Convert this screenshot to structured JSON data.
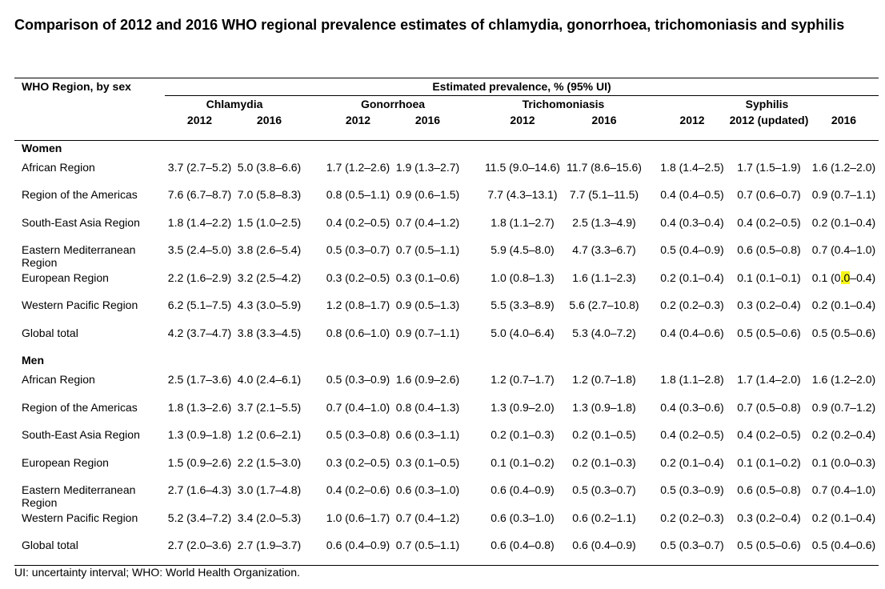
{
  "title": "Comparison of 2012 and 2016 WHO regional prevalence estimates of chlamydia, gonorrhoea, trichomoniasis and syphilis",
  "table": {
    "region_header": "WHO Region, by sex",
    "estimate_header": "Estimated prevalence, % (95% UI)",
    "diseases": [
      "Chlamydia",
      "Gonorrhoea",
      "Trichomoniasis",
      "Syphilis"
    ],
    "years": [
      "2012",
      "2016",
      "2012",
      "2016",
      "2012",
      "2016",
      "2012",
      "2012 (updated)",
      "2016"
    ],
    "groups": [
      {
        "label": "Women",
        "rows": [
          {
            "region": "African Region",
            "values": [
              "3.7 (2.7–5.2)",
              "5.0 (3.8–6.6)",
              "1.7 (1.2–2.6)",
              "1.9 (1.3–2.7)",
              "11.5 (9.0–14.6)",
              "11.7 (8.6–15.6)",
              "1.8 (1.4–2.5)",
              "1.7 (1.5–1.9)",
              "1.6 (1.2–2.0)"
            ]
          },
          {
            "region": "Region of the Americas",
            "values": [
              "7.6 (6.7–8.7)",
              "7.0 (5.8–8.3)",
              "0.8 (0.5–1.1)",
              "0.9 (0.6–1.5)",
              "7.7 (4.3–13.1)",
              "7.7 (5.1–11.5)",
              "0.4 (0.4–0.5)",
              "0.7 (0.6–0.7)",
              "0.9 (0.7–1.1)"
            ]
          },
          {
            "region": "South-East Asia Region",
            "values": [
              "1.8 (1.4–2.2)",
              "1.5 (1.0–2.5)",
              "0.4 (0.2–0.5)",
              "0.7 (0.4–1.2)",
              "1.8 (1.1–2.7)",
              "2.5 (1.3–4.9)",
              "0.4 (0.3–0.4)",
              "0.4 (0.2–0.5)",
              "0.2 (0.1–0.4)"
            ]
          },
          {
            "region": "Eastern Mediterranean Region",
            "values": [
              "3.5 (2.4–5.0)",
              "3.8 (2.6–5.4)",
              "0.5 (0.3–0.7)",
              "0.7 (0.5–1.1)",
              "5.9 (4.5–8.0)",
              "4.7 (3.3–6.7)",
              "0.5 (0.4–0.9)",
              "0.6 (0.5–0.8)",
              "0.7 (0.4–1.0)"
            ]
          },
          {
            "region": "European Region",
            "values": [
              "2.2 (1.6–2.9)",
              "3.2 (2.5–4.2)",
              "0.3 (0.2–0.5)",
              "0.3 (0.1–0.6)",
              "1.0 (0.8–1.3)",
              "1.6 (1.1–2.3)",
              "0.2 (0.1–0.4)",
              "0.1 (0.1–0.1)",
              "0.1 (0.0–0.4)"
            ]
          },
          {
            "region": "Western Pacific Region",
            "values": [
              "6.2 (5.1–7.5)",
              "4.3 (3.0–5.9)",
              "1.2 (0.8–1.7)",
              "0.9 (0.5–1.3)",
              "5.5 (3.3–8.9)",
              "5.6 (2.7–10.8)",
              "0.2 (0.2–0.3)",
              "0.3 (0.2–0.4)",
              "0.2 (0.1–0.4)"
            ]
          },
          {
            "region": "Global total",
            "values": [
              "4.2 (3.7–4.7)",
              "3.8 (3.3–4.5)",
              "0.8 (0.6–1.0)",
              "0.9 (0.7–1.1)",
              "5.0 (4.0–6.4)",
              "5.3 (4.0–7.2)",
              "0.4 (0.4–0.6)",
              "0.5 (0.5–0.6)",
              "0.5 (0.5–0.6)"
            ]
          }
        ]
      },
      {
        "label": "Men",
        "rows": [
          {
            "region": "African Region",
            "values": [
              "2.5 (1.7–3.6)",
              "4.0 (2.4–6.1)",
              "0.5 (0.3–0.9)",
              "1.6 (0.9–2.6)",
              "1.2 (0.7–1.7)",
              "1.2 (0.7–1.8)",
              "1.8 (1.1–2.8)",
              "1.7 (1.4–2.0)",
              "1.6 (1.2–2.0)"
            ]
          },
          {
            "region": "Region of the Americas",
            "values": [
              "1.8 (1.3–2.6)",
              "3.7 (2.1–5.5)",
              "0.7 (0.4–1.0)",
              "0.8 (0.4–1.3)",
              "1.3 (0.9–2.0)",
              "1.3 (0.9–1.8)",
              "0.4 (0.3–0.6)",
              "0.7 (0.5–0.8)",
              "0.9 (0.7–1.2)"
            ]
          },
          {
            "region": "South-East Asia Region",
            "values": [
              "1.3 (0.9–1.8)",
              "1.2 (0.6–2.1)",
              "0.5 (0.3–0.8)",
              "0.6 (0.3–1.1)",
              "0.2 (0.1–0.3)",
              "0.2 (0.1–0.5)",
              "0.4 (0.2–0.5)",
              "0.4 (0.2–0.5)",
              "0.2 (0.2–0.4)"
            ]
          },
          {
            "region": "European Region",
            "values": [
              "1.5 (0.9–2.6)",
              "2.2 (1.5–3.0)",
              "0.3 (0.2–0.5)",
              "0.3 (0.1–0.5)",
              "0.1 (0.1–0.2)",
              "0.2 (0.1–0.3)",
              "0.2 (0.1–0.4)",
              "0.1 (0.1–0.2)",
              "0.1 (0.0–0.3)"
            ]
          },
          {
            "region": "Eastern Mediterranean Region",
            "values": [
              "2.7 (1.6–4.3)",
              "3.0 (1.7–4.8)",
              "0.4 (0.2–0.6)",
              "0.6 (0.3–1.0)",
              "0.6 (0.4–0.9)",
              "0.5 (0.3–0.7)",
              "0.5 (0.3–0.9)",
              "0.6 (0.5–0.8)",
              "0.7 (0.4–1.0)"
            ]
          },
          {
            "region": "Western Pacific Region",
            "values": [
              "5.2 (3.4–7.2)",
              "3.4 (2.0–5.3)",
              "1.0 (0.6–1.7)",
              "0.7 (0.4–1.2)",
              "0.6 (0.3–1.0)",
              "0.6 (0.2–1.1)",
              "0.2 (0.2–0.3)",
              "0.3 (0.2–0.4)",
              "0.2 (0.1–0.4)"
            ]
          },
          {
            "region": "Global total",
            "values": [
              "2.7 (2.0–3.6)",
              "2.7 (1.9–3.7)",
              "0.6 (0.4–0.9)",
              "0.7 (0.5–1.1)",
              "0.6 (0.4–0.8)",
              "0.6 (0.4–0.9)",
              "0.5 (0.3–0.7)",
              "0.5 (0.5–0.6)",
              "0.5 (0.4–0.6)"
            ]
          }
        ]
      }
    ]
  },
  "highlight_color": "#f5f519",
  "footnote": "UI: uncertainty interval; WHO: World Health Organization."
}
